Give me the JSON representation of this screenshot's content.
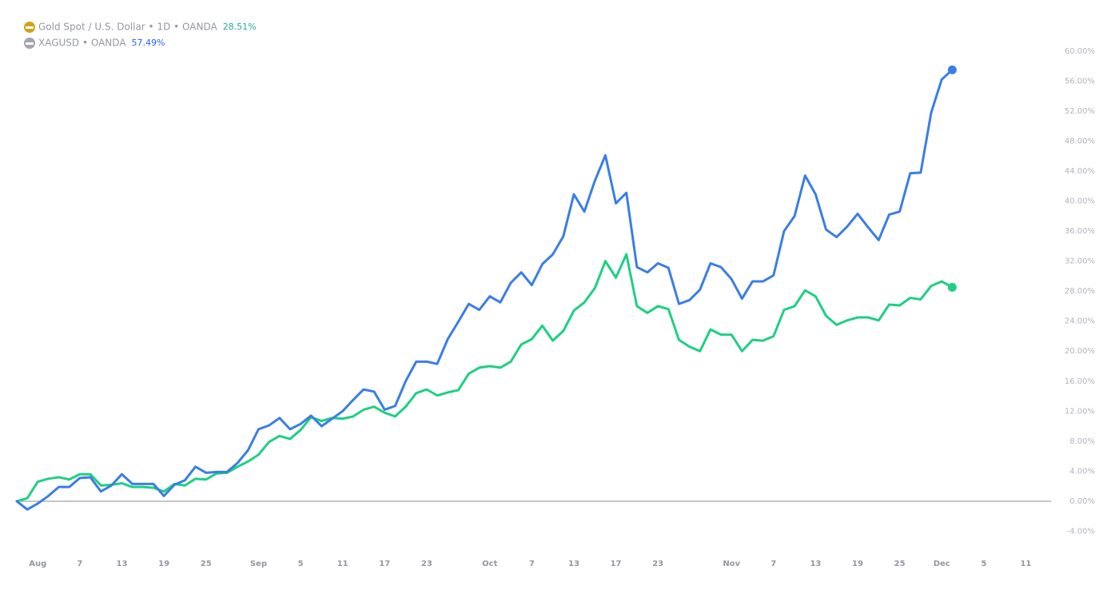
{
  "chart_data": {
    "type": "line",
    "categories": [
      null,
      null,
      "Aug",
      null,
      null,
      null,
      "7",
      null,
      null,
      null,
      "13",
      null,
      null,
      null,
      "19",
      null,
      null,
      null,
      "25",
      null,
      null,
      null,
      null,
      "Sep",
      null,
      null,
      null,
      "5",
      null,
      null,
      null,
      "11",
      null,
      null,
      null,
      "17",
      null,
      null,
      null,
      "23",
      null,
      null,
      null,
      null,
      null,
      "Oct",
      null,
      null,
      null,
      "7",
      null,
      null,
      null,
      "13",
      null,
      null,
      null,
      "17",
      null,
      null,
      null,
      "23",
      null,
      null,
      null,
      null,
      null,
      null,
      "Nov",
      null,
      null,
      null,
      "7",
      null,
      null,
      null,
      "13",
      null,
      null,
      null,
      "19",
      null,
      null,
      null,
      "25",
      null,
      null,
      null,
      "Dec",
      null,
      null,
      null,
      "5",
      null,
      null,
      null,
      "11"
    ],
    "series": [
      {
        "name": "Gold Spot / U.S. Dollar • 1D • OANDA",
        "color": "#1fcf84",
        "label_color": "#22ab94",
        "icon_color": "#d4a21a",
        "last_value_label": "28.51%",
        "values": [
          0,
          0.4,
          2.6,
          3.0,
          3.2,
          2.9,
          3.6,
          3.6,
          2.1,
          2.2,
          2.4,
          1.9,
          1.9,
          1.8,
          1.3,
          2.3,
          2.1,
          3.0,
          2.9,
          3.7,
          3.8,
          4.6,
          5.3,
          6.2,
          7.9,
          8.7,
          8.3,
          9.5,
          11.2,
          10.7,
          11.1,
          11.0,
          11.3,
          12.2,
          12.6,
          11.8,
          11.3,
          12.6,
          14.4,
          14.9,
          14.1,
          14.5,
          14.8,
          17.0,
          17.8,
          18.0,
          17.8,
          18.6,
          20.9,
          21.6,
          23.4,
          21.4,
          22.7,
          25.4,
          26.5,
          28.4,
          32.0,
          29.8,
          32.9,
          26.0,
          25.1,
          26.0,
          25.6,
          21.5,
          20.6,
          20.0,
          22.9,
          22.2,
          22.2,
          20.0,
          21.5,
          21.4,
          22.0,
          25.5,
          26.0,
          28.1,
          27.3,
          24.7,
          23.5,
          24.1,
          24.5,
          24.5,
          24.1,
          26.2,
          26.1,
          27.1,
          26.9,
          28.7,
          29.3,
          28.51,
          null,
          null,
          null,
          null,
          null,
          null,
          null
        ]
      },
      {
        "name": "XAGUSD • OANDA",
        "color": "#3a7ee4",
        "label_color": "#2962ff",
        "icon_color": "#a3a6af",
        "last_value_label": "57.49%",
        "values": [
          0,
          -1.1,
          -0.3,
          0.7,
          1.9,
          1.9,
          3.1,
          3.2,
          1.3,
          2.1,
          3.6,
          2.3,
          2.3,
          2.3,
          0.7,
          2.2,
          2.8,
          4.6,
          3.8,
          3.9,
          3.9,
          5.1,
          6.8,
          9.6,
          10.1,
          11.1,
          9.6,
          10.3,
          11.4,
          10.0,
          11.0,
          12.0,
          13.5,
          14.9,
          14.6,
          12.2,
          12.7,
          16.0,
          18.6,
          18.6,
          18.3,
          21.6,
          23.9,
          26.3,
          25.5,
          27.3,
          26.5,
          29.1,
          30.5,
          28.8,
          31.6,
          32.9,
          35.3,
          40.9,
          38.6,
          42.7,
          46.1,
          39.7,
          41.1,
          31.2,
          30.5,
          31.7,
          31.1,
          26.3,
          26.8,
          28.2,
          31.7,
          31.2,
          29.6,
          27.0,
          29.3,
          29.3,
          30.1,
          36.0,
          38.0,
          43.4,
          40.9,
          36.2,
          35.2,
          36.6,
          38.3,
          36.5,
          34.8,
          38.2,
          38.6,
          43.7,
          43.8,
          51.8,
          56.2,
          57.49,
          null,
          null,
          null,
          null,
          null,
          null,
          null
        ]
      }
    ],
    "ylim": [
      -6.5,
      62
    ],
    "yticks": [
      {
        "value": 60,
        "label": "60.00%"
      },
      {
        "value": 56,
        "label": "56.00%"
      },
      {
        "value": 52,
        "label": "52.00%"
      },
      {
        "value": 48,
        "label": "48.00%"
      },
      {
        "value": 44,
        "label": "44.00%"
      },
      {
        "value": 40,
        "label": "40.00%"
      },
      {
        "value": 36,
        "label": "36.00%"
      },
      {
        "value": 32,
        "label": "32.00%"
      },
      {
        "value": 28,
        "label": "28.00%"
      },
      {
        "value": 24,
        "label": "24.00%"
      },
      {
        "value": 20,
        "label": "20.00%"
      },
      {
        "value": 16,
        "label": "16.00%"
      },
      {
        "value": 12,
        "label": "12.00%"
      },
      {
        "value": 8,
        "label": "8.00%"
      },
      {
        "value": 4,
        "label": "4.00%"
      },
      {
        "value": 0,
        "label": "0.00%"
      },
      {
        "value": -4,
        "label": "-4.00%"
      }
    ],
    "grid": false
  }
}
